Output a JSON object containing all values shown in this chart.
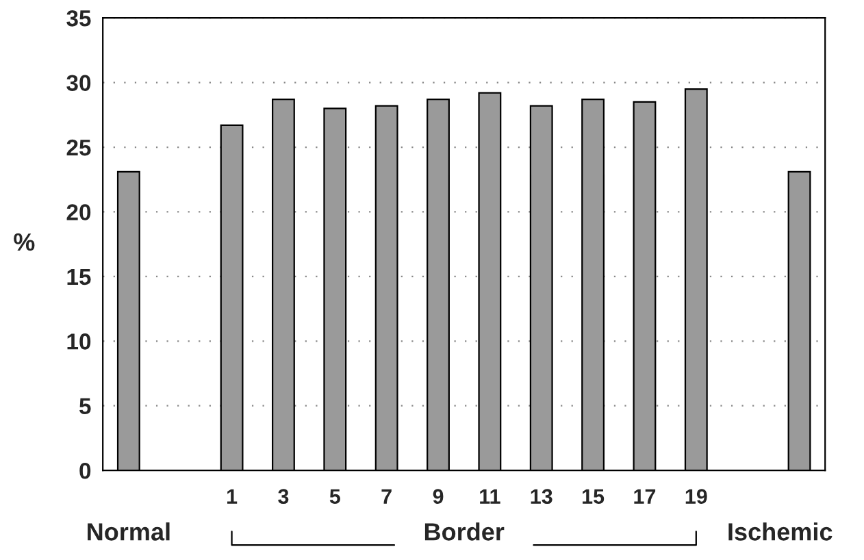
{
  "chart_data": {
    "type": "bar",
    "ylabel": "%",
    "categories": [
      "Normal",
      null,
      "1",
      "3",
      "5",
      "7",
      "9",
      "11",
      "13",
      "15",
      "17",
      "19",
      null,
      "Ischemic"
    ],
    "values": [
      23.1,
      null,
      26.7,
      28.7,
      28.0,
      28.2,
      28.7,
      29.2,
      28.2,
      28.7,
      28.5,
      29.5,
      null,
      23.1
    ],
    "color": "#9a9a9a",
    "ylim": [
      0,
      35
    ],
    "yticks": [
      0,
      5,
      10,
      15,
      20,
      25,
      30,
      35
    ],
    "grid": "y",
    "annotations": [
      "Border"
    ]
  }
}
